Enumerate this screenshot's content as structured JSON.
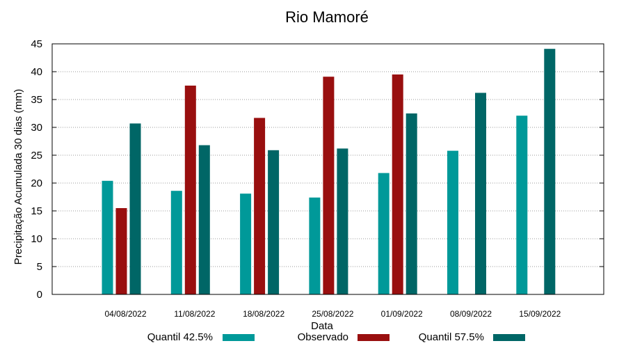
{
  "chart_data": {
    "type": "bar",
    "title": "Rio Mamoré",
    "xlabel": "Data",
    "ylabel": "Precipitação Acumulada 30 dias (mm)",
    "ylim": [
      0,
      45
    ],
    "yticks": [
      0,
      5,
      10,
      15,
      20,
      25,
      30,
      35,
      40,
      45
    ],
    "grid": true,
    "legend_position": "bottom",
    "categories": [
      "04/08/2022",
      "11/08/2022",
      "18/08/2022",
      "25/08/2022",
      "01/09/2022",
      "08/09/2022",
      "15/09/2022"
    ],
    "series": [
      {
        "name": "Quantil 42.5%",
        "color": "#009999",
        "values": [
          20.4,
          18.6,
          18.1,
          17.4,
          21.8,
          25.8,
          32.1
        ]
      },
      {
        "name": "Observado",
        "color": "#990f0f",
        "values": [
          15.5,
          37.5,
          31.7,
          39.1,
          39.5,
          null,
          null
        ]
      },
      {
        "name": "Quantil 57.5%",
        "color": "#006666",
        "values": [
          30.7,
          26.8,
          25.9,
          26.2,
          32.5,
          36.2,
          44.1
        ]
      }
    ]
  }
}
